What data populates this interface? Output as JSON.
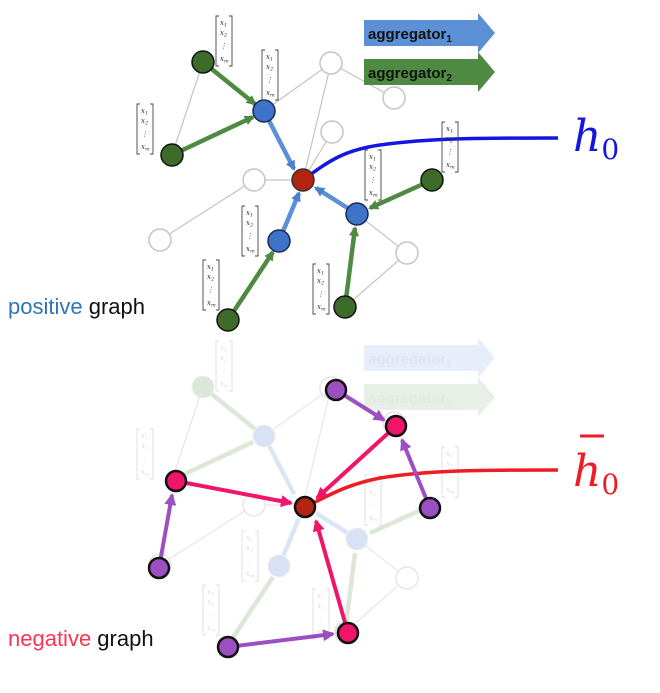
{
  "colors": {
    "aggregator1": "#5b8fd6",
    "aggregator2": "#4f8a43",
    "h0": "#1515e0",
    "h0_bar": "#ee1c24",
    "positive_word": "#2e75b6",
    "negative_word": "#ff3355",
    "center_node": "#b32412",
    "blue_node": "#3d73c8",
    "green_node": "#3d6b2a",
    "pink_node": "#f0146a",
    "purple_node": "#9b4fc0"
  },
  "legend": {
    "aggregator1_label": "aggregator",
    "aggregator1_sub": "1",
    "aggregator2_label": "aggregator",
    "aggregator2_sub": "2"
  },
  "positive": {
    "word": "positive",
    "rest": " graph",
    "output_label": "h",
    "output_sub": "0"
  },
  "negative": {
    "word": "negative",
    "rest": " graph",
    "output_label": "h",
    "output_sub": "0"
  },
  "vector": {
    "x1": "x",
    "x1_sub": "1",
    "x2": "x",
    "x2_sub": "2",
    "dots": "⋮",
    "xm": "x",
    "xm_sub": "m"
  },
  "icons": {
    "aggregator1": "arrow-right-blue-icon",
    "aggregator2": "arrow-right-green-icon"
  }
}
